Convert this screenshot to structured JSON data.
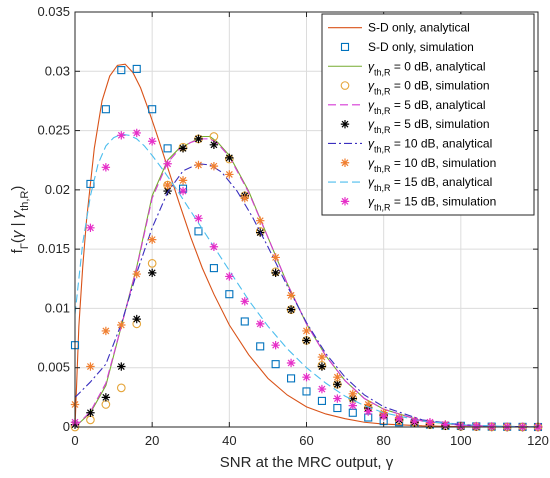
{
  "chart_data": {
    "type": "line",
    "xlabel": "SNR at the MRC output, γ",
    "ylabel": "fΓ(γ | γth,R)",
    "ylabel_parts": {
      "base": "f",
      "sub1": "Γ",
      "mid1": "(",
      "gamma": "γ",
      "bar": " | ",
      "gamma2": "γ",
      "sub2": "th,R",
      "close": ")"
    },
    "xlim": [
      0,
      120
    ],
    "ylim": [
      0,
      0.035
    ],
    "xticks": [
      "0",
      "20",
      "40",
      "60",
      "80",
      "100",
      "120"
    ],
    "yticks": [
      "0",
      "0.005",
      "0.01",
      "0.015",
      "0.02",
      "0.025",
      "0.03",
      "0.035"
    ],
    "grid": true,
    "legend_position": "top-right",
    "series": [
      {
        "name": "S-D only, analytical",
        "color": "#d95319",
        "style": "solid",
        "marker": "none",
        "x": [
          0,
          1,
          2,
          3,
          5,
          7,
          9,
          11,
          13,
          15,
          17,
          19,
          21,
          23,
          25,
          27,
          30,
          33,
          36,
          40,
          45,
          50,
          55,
          60,
          65,
          70,
          75,
          80,
          90,
          100,
          110,
          120
        ],
        "y": [
          0,
          0.0085,
          0.0135,
          0.0175,
          0.0235,
          0.0275,
          0.0296,
          0.0305,
          0.0306,
          0.0299,
          0.0286,
          0.0268,
          0.0249,
          0.0229,
          0.0209,
          0.0189,
          0.016,
          0.0134,
          0.0112,
          0.0086,
          0.0061,
          0.0041,
          0.0027,
          0.0017,
          0.0011,
          0.0007,
          0.0004,
          0.00025,
          0.0001,
          3e-05,
          1e-05,
          0
        ]
      },
      {
        "name": "S-D only, simulation",
        "color": "#0072bd",
        "style": "none",
        "marker": "square",
        "x": [
          0,
          4,
          8,
          12,
          16,
          20,
          24,
          28,
          32,
          36,
          40,
          44,
          48,
          52,
          56,
          60,
          64,
          68,
          72,
          76,
          80,
          84,
          88,
          92,
          96,
          100,
          104,
          108,
          112,
          116,
          120
        ],
        "y": [
          0.0069,
          0.0205,
          0.0268,
          0.0301,
          0.0302,
          0.0268,
          0.0235,
          0.0201,
          0.0165,
          0.0134,
          0.0112,
          0.0089,
          0.0068,
          0.0053,
          0.0041,
          0.003,
          0.0022,
          0.0016,
          0.0012,
          0.0008,
          0.0005,
          0.0004,
          0.0003,
          0.0002,
          0.0001,
          0.0001,
          5e-05,
          3e-05,
          2e-05,
          1e-05,
          0
        ]
      },
      {
        "name": "γth,R = 0 dB, analytical",
        "label_base": "γ",
        "label_sub": "th,R",
        "label_rest": " = 0 dB, analytical",
        "color": "#77ac30",
        "style": "solid",
        "marker": "none",
        "x": [
          0,
          4,
          8,
          12,
          16,
          20,
          24,
          27,
          30,
          33,
          35,
          37,
          40,
          45,
          50,
          55,
          60,
          65,
          70,
          75,
          80,
          90,
          100,
          110,
          120
        ],
        "y": [
          0,
          0.0012,
          0.0035,
          0.0085,
          0.0135,
          0.0195,
          0.0225,
          0.0235,
          0.024,
          0.0245,
          0.0245,
          0.024,
          0.0229,
          0.0199,
          0.016,
          0.0121,
          0.0087,
          0.006,
          0.0039,
          0.0024,
          0.0015,
          0.0005,
          0.00015,
          4e-05,
          1e-05
        ]
      },
      {
        "name": "γth,R = 0 dB, simulation",
        "label_base": "γ",
        "label_sub": "th,R",
        "label_rest": " = 0 dB, simulation",
        "color": "#e5a53a",
        "style": "none",
        "marker": "circle",
        "x": [
          0,
          4,
          8,
          12,
          16,
          20,
          24,
          28,
          32,
          36,
          40,
          44,
          48,
          52,
          56,
          60,
          64,
          68,
          72,
          76,
          80,
          84,
          88,
          92,
          96,
          100,
          104,
          108,
          112,
          116,
          120
        ],
        "y": [
          0,
          0.0006,
          0.0019,
          0.0033,
          0.0087,
          0.0138,
          0.0204,
          0.0236,
          0.0243,
          0.0245,
          0.0226,
          0.0195,
          0.0165,
          0.0131,
          0.0099,
          0.0073,
          0.0052,
          0.0036,
          0.0024,
          0.0016,
          0.001,
          0.0006,
          0.0004,
          0.0002,
          0.0001,
          5e-05,
          3e-05,
          1e-05,
          0,
          0,
          0
        ]
      },
      {
        "name": "γth,R = 5 dB, analytical",
        "label_base": "γ",
        "label_sub": "th,R",
        "label_rest": " = 5 dB, analytical",
        "color": "#d63ad6",
        "style": "dashed",
        "marker": "none",
        "x": [
          0,
          4,
          8,
          12,
          16,
          20,
          24,
          27,
          30,
          33,
          35,
          37,
          40,
          45,
          50,
          55,
          60,
          65,
          70,
          75,
          80,
          90,
          100,
          110,
          120
        ],
        "y": [
          0,
          0.0013,
          0.0037,
          0.0085,
          0.0134,
          0.0193,
          0.0223,
          0.0234,
          0.024,
          0.0243,
          0.0243,
          0.0239,
          0.0228,
          0.0198,
          0.016,
          0.0121,
          0.0087,
          0.006,
          0.0039,
          0.0024,
          0.0015,
          0.0005,
          0.00015,
          4e-05,
          1e-05
        ]
      },
      {
        "name": "γth,R = 5 dB, simulation",
        "label_base": "γ",
        "label_sub": "th,R",
        "label_rest": " = 5 dB, simulation",
        "color": "#000000",
        "style": "none",
        "marker": "asterisk",
        "x": [
          0,
          4,
          8,
          12,
          16,
          20,
          24,
          28,
          32,
          36,
          40,
          44,
          48,
          52,
          56,
          60,
          64,
          68,
          72,
          76,
          80,
          84,
          88,
          92,
          96,
          100,
          104,
          108,
          112,
          116,
          120
        ],
        "y": [
          0.0002,
          0.0012,
          0.0025,
          0.0051,
          0.0091,
          0.013,
          0.0199,
          0.0235,
          0.0243,
          0.0238,
          0.0227,
          0.0195,
          0.0164,
          0.013,
          0.0099,
          0.0073,
          0.0051,
          0.0036,
          0.0024,
          0.0016,
          0.001,
          0.0006,
          0.0004,
          0.0002,
          0.0001,
          5e-05,
          3e-05,
          1e-05,
          0,
          0,
          0
        ]
      },
      {
        "name": "γth,R = 10 dB, analytical",
        "label_base": "γ",
        "label_sub": "th,R",
        "label_rest": " = 10 dB, analytical",
        "color": "#3a2fbf",
        "style": "dashdot",
        "marker": "none",
        "x": [
          0,
          4,
          8,
          12,
          16,
          20,
          24,
          28,
          32,
          35,
          38,
          42,
          46,
          50,
          55,
          60,
          65,
          70,
          75,
          80,
          90,
          100,
          110,
          120
        ],
        "y": [
          0.0025,
          0.0038,
          0.0053,
          0.0087,
          0.013,
          0.0168,
          0.0198,
          0.0216,
          0.0222,
          0.0221,
          0.0215,
          0.0199,
          0.0177,
          0.0152,
          0.0119,
          0.0088,
          0.0062,
          0.0042,
          0.0027,
          0.0017,
          0.0006,
          0.0002,
          5e-05,
          1e-05
        ]
      },
      {
        "name": "γth,R = 10 dB, simulation",
        "label_base": "γ",
        "label_sub": "th,R",
        "label_rest": " = 10 dB, simulation",
        "color": "#f07f30",
        "style": "none",
        "marker": "asterisk",
        "x": [
          0,
          4,
          8,
          12,
          16,
          20,
          24,
          28,
          32,
          36,
          40,
          44,
          48,
          52,
          56,
          60,
          64,
          68,
          72,
          76,
          80,
          84,
          88,
          92,
          96,
          100,
          104,
          108,
          112,
          116,
          120
        ],
        "y": [
          0.0019,
          0.0051,
          0.0081,
          0.0086,
          0.0129,
          0.0158,
          0.0204,
          0.0208,
          0.0221,
          0.022,
          0.0213,
          0.0193,
          0.0174,
          0.0143,
          0.0111,
          0.0081,
          0.0059,
          0.0042,
          0.0028,
          0.0019,
          0.0012,
          0.0008,
          0.0005,
          0.0003,
          0.0002,
          0.0001,
          6e-05,
          3e-05,
          2e-05,
          1e-05,
          0
        ]
      },
      {
        "name": "γth,R = 15 dB, analytical",
        "label_base": "γ",
        "label_sub": "th,R",
        "label_rest": " = 15 dB, analytical",
        "color": "#4dbeee",
        "style": "dashed",
        "marker": "none",
        "x": [
          0,
          2,
          4,
          6,
          8,
          10,
          12,
          14,
          16,
          18,
          20,
          23,
          26,
          30,
          35,
          40,
          45,
          50,
          55,
          60,
          65,
          70,
          75,
          80,
          90,
          100,
          110,
          120
        ],
        "y": [
          0.0095,
          0.0155,
          0.0195,
          0.0222,
          0.0237,
          0.0244,
          0.0247,
          0.0246,
          0.0243,
          0.0237,
          0.0229,
          0.0216,
          0.0202,
          0.0182,
          0.0157,
          0.0132,
          0.0107,
          0.0085,
          0.0066,
          0.005,
          0.0037,
          0.0026,
          0.0018,
          0.0012,
          0.0005,
          0.0002,
          7e-05,
          2e-05
        ]
      },
      {
        "name": "γth,R = 15 dB, simulation",
        "label_base": "γ",
        "label_sub": "th,R",
        "label_rest": " = 15 dB, simulation",
        "color": "#e62ec8",
        "style": "none",
        "marker": "asterisk",
        "x": [
          0,
          4,
          8,
          12,
          16,
          20,
          24,
          28,
          32,
          36,
          40,
          44,
          48,
          52,
          56,
          60,
          64,
          68,
          72,
          76,
          80,
          84,
          88,
          92,
          96,
          100,
          104,
          108,
          112,
          116,
          120
        ],
        "y": [
          0.0004,
          0.0168,
          0.0219,
          0.0246,
          0.0248,
          0.0241,
          0.0222,
          0.0199,
          0.0176,
          0.0152,
          0.0127,
          0.0106,
          0.0087,
          0.0069,
          0.0054,
          0.0042,
          0.0032,
          0.0024,
          0.0018,
          0.0013,
          0.0009,
          0.0007,
          0.0005,
          0.0004,
          0.0002,
          0.0001,
          8e-05,
          5e-05,
          3e-05,
          2e-05,
          1e-05
        ]
      }
    ]
  }
}
